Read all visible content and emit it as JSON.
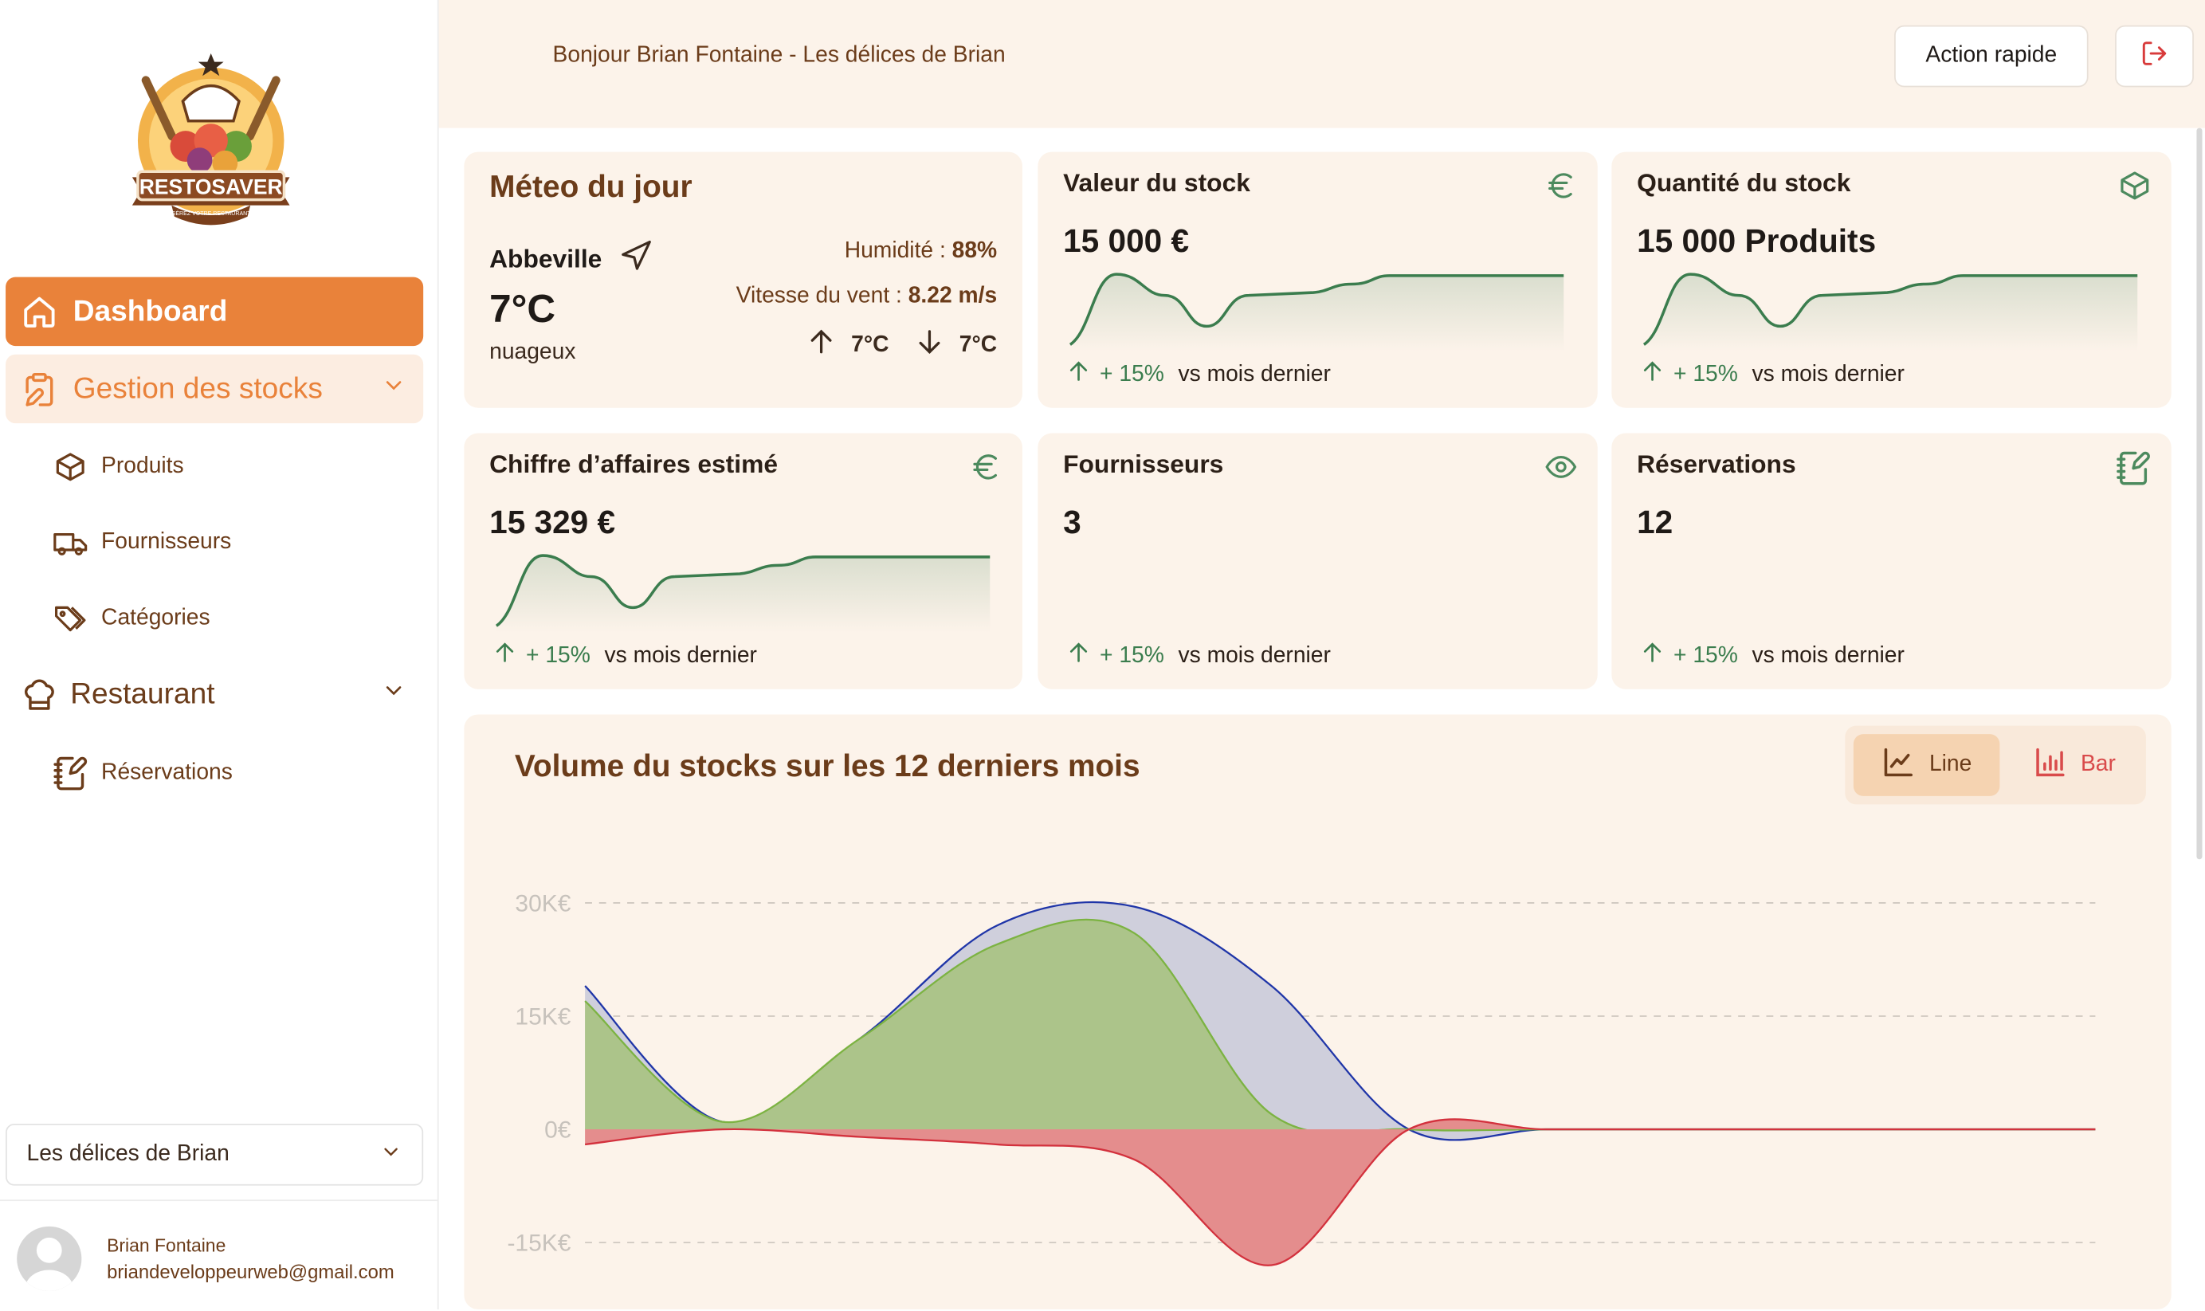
{
  "brand": {
    "logo_text": "RESTOSAVER",
    "logo_tagline": "GÉREZ VOTRE RESTAURANT"
  },
  "sidebar": {
    "dashboard": "Dashboard",
    "stock_group": "Gestion des stocks",
    "stock_items": [
      "Produits",
      "Fournisseurs",
      "Catégories"
    ],
    "restaurant_group": "Restaurant",
    "restaurant_items": [
      "Réservations"
    ],
    "restaurant_select": "Les délices de Brian",
    "user": {
      "name": "Brian Fontaine",
      "email": "briandeveloppeurweb@gmail.com"
    }
  },
  "header": {
    "greeting": "Bonjour Brian Fontaine - Les délices de Brian",
    "quick_action": "Action rapide"
  },
  "weather": {
    "title": "Méteo du jour",
    "city": "Abbeville",
    "temp": "7°C",
    "condition": "nuageux",
    "humidity_label": "Humidité : ",
    "humidity": "88%",
    "wind_label": "Vitesse du vent : ",
    "wind": "8.22 m/s",
    "temp_max": "7°C",
    "temp_min": "7°C"
  },
  "cards": [
    {
      "title": "Valeur du stock",
      "value": "15 000 €",
      "icon": "euro-icon",
      "trend": "+ 15%",
      "vs": "vs mois dernier"
    },
    {
      "title": "Quantité du stock",
      "value": "15 000 Produits",
      "icon": "box-icon",
      "trend": "+ 15%",
      "vs": "vs mois dernier"
    },
    {
      "title": "Chiffre d’affaires estimé",
      "value": "15 329 €",
      "icon": "euro-icon",
      "trend": "+ 15%",
      "vs": "vs mois dernier"
    },
    {
      "title": "Fournisseurs",
      "value": "3",
      "icon": "eye-icon",
      "trend": "+ 15%",
      "vs": "vs mois dernier"
    },
    {
      "title": "Réservations",
      "value": "12",
      "icon": "notebook-pen-icon",
      "trend": "+ 15%",
      "vs": "vs mois dernier"
    }
  ],
  "chart": {
    "title": "Volume du stocks sur les 12 derniers mois",
    "toggle_line": "Line",
    "toggle_bar": "Bar"
  },
  "chart_data": {
    "type": "area",
    "title": "Volume du stocks sur les 12 derniers mois",
    "ylim": [
      -18000,
      32000
    ],
    "yticks": [
      30000,
      15000,
      0,
      -15000
    ],
    "ytick_labels": [
      "30K€",
      "15K€",
      "0€",
      "-15K€"
    ],
    "x": [
      0,
      1,
      2,
      3,
      4,
      5,
      6,
      7,
      8,
      9,
      10,
      11
    ],
    "grid": true,
    "series": [
      {
        "color": "#1f35a8",
        "fill": "#cfcfdc",
        "values": [
          19000,
          1000,
          12000,
          27000,
          29500,
          19000,
          0,
          0,
          0,
          0,
          0,
          0
        ]
      },
      {
        "color": "#7cb342",
        "fill": "#acc48a",
        "values": [
          17000,
          1000,
          12000,
          24500,
          26000,
          2000,
          0,
          0,
          0,
          0,
          0,
          0
        ]
      },
      {
        "color": "#d3313d",
        "fill": "#e48d8d",
        "values": [
          -2000,
          0,
          -1000,
          -2000,
          -4000,
          -18000,
          0,
          0,
          0,
          0,
          0,
          0
        ]
      }
    ]
  },
  "colors": {
    "accent": "#e9823a",
    "positive": "#3b7d4e",
    "brown": "#6b3c1a",
    "card_bg": "#fcf3ea"
  }
}
